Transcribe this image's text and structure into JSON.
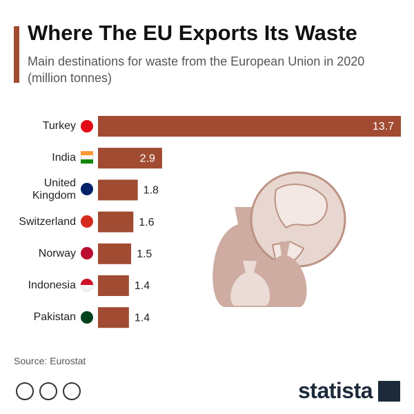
{
  "chart_data": {
    "type": "bar",
    "orientation": "horizontal",
    "title": "Where The EU Exports Its Waste",
    "subtitle": "Main destinations for waste from the European Union in 2020 (million tonnes)",
    "categories": [
      "Turkey",
      "India",
      "United Kingdom",
      "Switzerland",
      "Norway",
      "Indonesia",
      "Pakistan"
    ],
    "values": [
      13.7,
      2.9,
      1.8,
      1.6,
      1.5,
      1.4,
      1.4
    ],
    "color": "#a14b32",
    "source": "Source: Eurostat",
    "logo": "statista"
  }
}
